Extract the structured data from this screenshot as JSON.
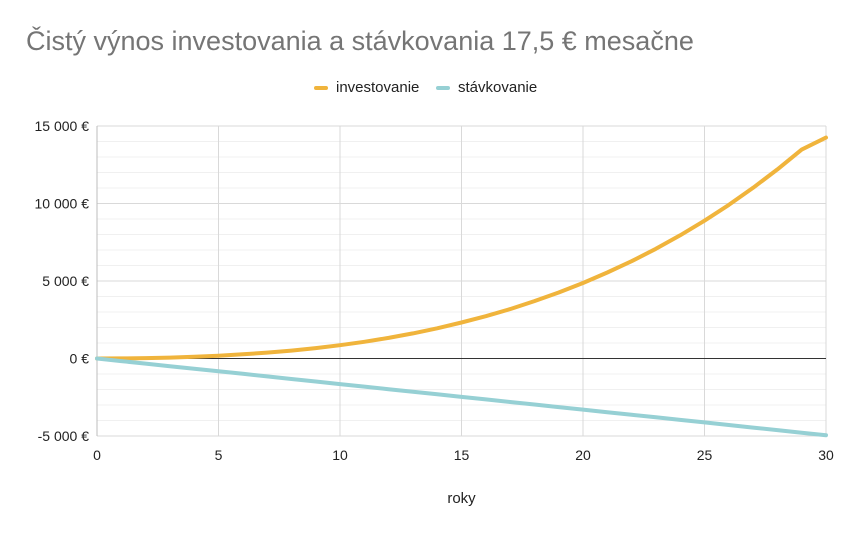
{
  "chart_data": {
    "type": "line",
    "title": "Čistý výnos investovania a stávkovania 17,5 € mesačne",
    "xlabel": "roky",
    "ylabel": "",
    "xlim": [
      0,
      30
    ],
    "ylim": [
      -5000,
      15000
    ],
    "x_ticks": [
      0,
      5,
      10,
      15,
      20,
      25,
      30
    ],
    "y_ticks": [
      15000,
      10000,
      5000,
      0,
      -5000
    ],
    "y_tick_labels": [
      "15 000 €",
      "10 000 €",
      "5 000 €",
      "0 €",
      "-5 000 €"
    ],
    "grid": true,
    "legend_position": "top",
    "x": [
      0,
      1,
      2,
      3,
      4,
      5,
      6,
      7,
      8,
      9,
      10,
      11,
      12,
      13,
      14,
      15,
      16,
      17,
      18,
      19,
      20,
      21,
      22,
      23,
      24,
      25,
      26,
      27,
      28,
      29,
      30
    ],
    "series": [
      {
        "name": "investovanie",
        "color": "#f0b43c",
        "values": [
          0,
          5,
          25,
          55,
          110,
          180,
          270,
          380,
          510,
          670,
          860,
          1080,
          1330,
          1620,
          1950,
          2320,
          2730,
          3190,
          3700,
          4260,
          4870,
          5550,
          6280,
          7080,
          7950,
          8890,
          9910,
          11010,
          12200,
          13480,
          14250
        ]
      },
      {
        "name": "stávkovanie",
        "color": "#96d0d4",
        "values": [
          0,
          -165,
          -330,
          -495,
          -660,
          -825,
          -990,
          -1155,
          -1320,
          -1485,
          -1650,
          -1815,
          -1980,
          -2145,
          -2310,
          -2475,
          -2640,
          -2805,
          -2970,
          -3135,
          -3300,
          -3465,
          -3630,
          -3795,
          -3960,
          -4125,
          -4290,
          -4455,
          -4620,
          -4785,
          -4950
        ]
      }
    ]
  }
}
